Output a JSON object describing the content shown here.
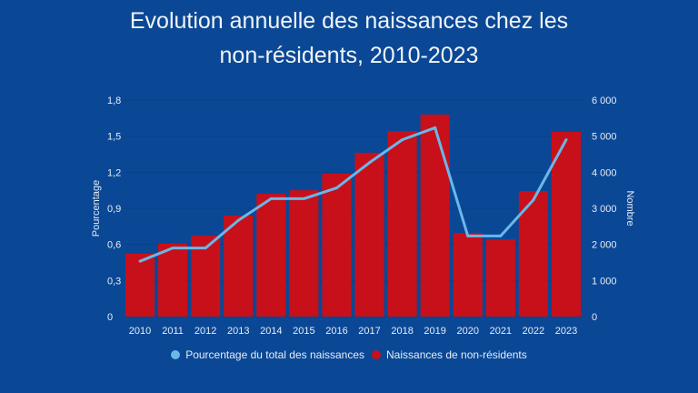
{
  "chart_data": {
    "type": "bar",
    "title": "Evolution annuelle des naissances chez les non-résidents, 2010-2023",
    "title_lines": [
      "Evolution annuelle des naissances chez les",
      "non-résidents, 2010-2023"
    ],
    "categories": [
      "2010",
      "2011",
      "2012",
      "2013",
      "2014",
      "2015",
      "2016",
      "2017",
      "2018",
      "2019",
      "2020",
      "2021",
      "2022",
      "2023"
    ],
    "series": [
      {
        "name": "Naissances de non-résidents",
        "type": "bar",
        "axis": "right",
        "color": "#c8101a",
        "values": [
          1740,
          2020,
          2240,
          2800,
          3400,
          3500,
          3960,
          4540,
          5140,
          5600,
          2320,
          2140,
          3480,
          5120
        ]
      },
      {
        "name": "Pourcentage du total des naissances",
        "type": "line",
        "axis": "left",
        "color": "#6ab7e8",
        "values": [
          0.46,
          0.57,
          0.57,
          0.8,
          0.98,
          0.98,
          1.07,
          1.28,
          1.47,
          1.57,
          0.67,
          0.67,
          0.97,
          1.47
        ]
      }
    ],
    "y_left": {
      "label": "Pourcentage",
      "lim": [
        0,
        1.8
      ],
      "ticks": [
        0,
        0.3,
        0.6,
        0.9,
        1.2,
        1.5,
        1.8
      ],
      "tick_labels": [
        "0",
        "0,3",
        "0,6",
        "0,9",
        "1,2",
        "1,5",
        "1,8"
      ]
    },
    "y_right": {
      "label": "Nombre",
      "lim": [
        0,
        6000
      ],
      "ticks": [
        0,
        1000,
        2000,
        3000,
        4000,
        5000,
        6000
      ],
      "tick_labels": [
        "0",
        "1 000",
        "2 000",
        "3 000",
        "4 000",
        "5 000",
        "6 000"
      ]
    },
    "xlabel": "",
    "grid": true,
    "legend_position": "bottom"
  },
  "colors": {
    "background": "#0a4896",
    "bar": "#c8101a",
    "line": "#6ab7e8"
  }
}
